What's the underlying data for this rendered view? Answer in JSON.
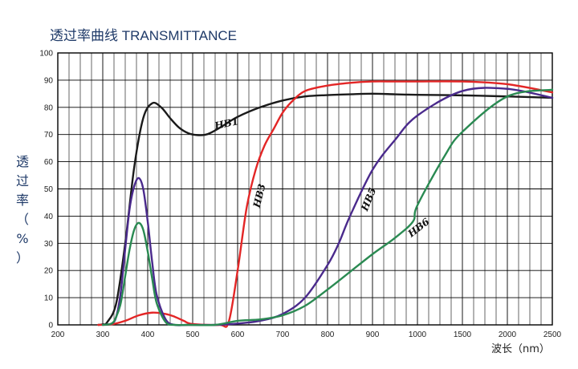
{
  "chart_data": {
    "type": "line",
    "title": "透过率曲线 TRANSMITTANCE",
    "ylabel": "透过率（%）",
    "xlabel": "波长（nm）",
    "ylim": [
      0,
      100
    ],
    "y_ticks": [
      "100",
      "90",
      "80",
      "70",
      "60",
      "50",
      "40",
      "30",
      "20",
      "10",
      "0"
    ],
    "x_tick_labels": [
      "200",
      "300",
      "400",
      "500",
      "600",
      "700",
      "800",
      "900",
      "1000",
      "1500",
      "2000",
      "2500"
    ],
    "grid": true,
    "series": [
      {
        "name": "HB1",
        "color": "#1a1a1a",
        "x": [
          290,
          300,
          310,
          330,
          350,
          370,
          390,
          410,
          430,
          450,
          470,
          490,
          510,
          530,
          550,
          570,
          600,
          650,
          700,
          750,
          800,
          850,
          900,
          950,
          1000,
          1500,
          2000,
          2500
        ],
        "y": [
          0,
          0.2,
          1,
          8,
          30,
          58,
          76,
          81.5,
          80,
          76,
          72.5,
          70.5,
          69.8,
          70,
          71.5,
          73.5,
          76.5,
          80,
          82.5,
          84,
          84.5,
          84.8,
          85,
          84.8,
          84.6,
          84.4,
          84,
          83.5
        ]
      },
      {
        "name": "HB3",
        "color": "#e32626",
        "x": [
          290,
          320,
          350,
          380,
          410,
          440,
          460,
          480,
          500,
          560,
          580,
          600,
          620,
          640,
          660,
          680,
          700,
          720,
          750,
          800,
          850,
          900,
          950,
          1000,
          1500,
          2000,
          2500
        ],
        "y": [
          0,
          0.2,
          1.5,
          3.5,
          4.5,
          4,
          3,
          1.5,
          0.3,
          0,
          1,
          20,
          43,
          57,
          66,
          72,
          78,
          82,
          86,
          88,
          89,
          89.5,
          89.5,
          89.5,
          89.5,
          88.5,
          85.5
        ]
      },
      {
        "name": "HB5",
        "color": "#4a2a8c",
        "x": [
          300,
          320,
          330,
          340,
          350,
          360,
          370,
          380,
          390,
          400,
          410,
          420,
          440,
          460,
          490,
          550,
          600,
          650,
          700,
          750,
          800,
          825,
          850,
          900,
          950,
          1000,
          1500,
          2000,
          2500
        ],
        "y": [
          0,
          0.5,
          3,
          12,
          28,
          43,
          51,
          54,
          50,
          38,
          23,
          11,
          2,
          0,
          0,
          0,
          0.5,
          1.5,
          4,
          10,
          22,
          30,
          40,
          57,
          68,
          77,
          86,
          86.8,
          83.5
        ]
      },
      {
        "name": "HB6",
        "color": "#2a8a52",
        "x": [
          300,
          320,
          330,
          340,
          350,
          360,
          370,
          380,
          390,
          400,
          410,
          420,
          440,
          460,
          490,
          550,
          600,
          650,
          700,
          750,
          800,
          850,
          900,
          950,
          990,
          1000,
          1300,
          1500,
          2000,
          2500
        ],
        "y": [
          0,
          0.5,
          3,
          8,
          18,
          28,
          35,
          37.5,
          35,
          27,
          17,
          8,
          1,
          0,
          0,
          0,
          1.5,
          2,
          3.5,
          7,
          13,
          19.5,
          26,
          32,
          38,
          44,
          62,
          71,
          84,
          86.5
        ]
      }
    ],
    "labels": [
      "HB1",
      "HB3",
      "HB5",
      "HB6"
    ]
  }
}
